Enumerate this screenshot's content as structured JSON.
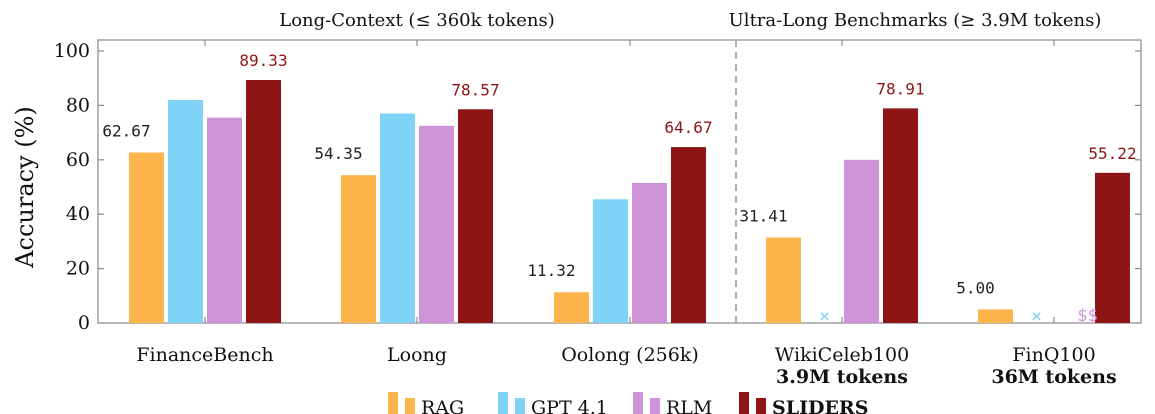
{
  "chart_data": {
    "type": "bar",
    "title": "",
    "xlabel": "",
    "ylabel": "Accuracy (%)",
    "ylim": [
      0,
      100
    ],
    "yticks": [
      0,
      20,
      40,
      60,
      80,
      100
    ],
    "grid": false,
    "legend_position": "bottom",
    "sections": [
      {
        "label": "Long-Context (≤ 360k tokens)",
        "categories": [
          0,
          1,
          2
        ]
      },
      {
        "label": "Ultra-Long Benchmarks (≥ 3.9M tokens)",
        "categories": [
          3,
          4
        ]
      }
    ],
    "categories": [
      "FinanceBench",
      "Loong",
      "Oolong (256k)",
      "WikiCeleb100",
      "FinQ100"
    ],
    "category_sublabels": [
      "",
      "",
      "",
      "3.9M tokens",
      "36M tokens"
    ],
    "series": [
      {
        "name": "RAG",
        "color": "#FDB44B",
        "values": [
          62.67,
          54.35,
          11.32,
          31.41,
          5.0
        ],
        "labels": [
          "62.67",
          "54.35",
          "11.32",
          "31.41",
          "5.00"
        ],
        "label_color": "#222222"
      },
      {
        "name": "GPT 4.1",
        "color": "#7FD3F7",
        "values": [
          82.0,
          77.0,
          45.5,
          null,
          null
        ],
        "labels": [
          null,
          null,
          null,
          null,
          null
        ],
        "missing_marker": "×",
        "label_color": "#7FD3F7"
      },
      {
        "name": "RLM",
        "color": "#CE93D8",
        "values": [
          75.5,
          72.5,
          51.5,
          60.0,
          null
        ],
        "labels": [
          null,
          null,
          null,
          null,
          "$$"
        ],
        "label_color": "#CE93D8"
      },
      {
        "name": "SLIDERS",
        "color": "#8E1515",
        "values": [
          89.33,
          78.57,
          64.67,
          78.91,
          55.22
        ],
        "labels": [
          "89.33",
          "78.57",
          "64.67",
          "78.91",
          "55.22"
        ],
        "label_color": "#8E1515",
        "bold_legend": true
      }
    ]
  }
}
